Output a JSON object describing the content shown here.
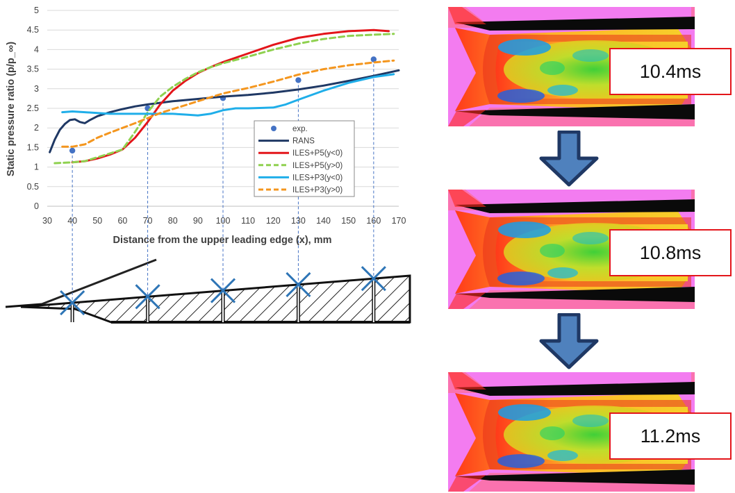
{
  "chart_data": {
    "type": "line",
    "xlabel": "Distance from the upper leading edge (x), mm",
    "ylabel": "Static pressure ratio (p/p_∞)",
    "xlim": [
      30,
      170
    ],
    "ylim": [
      0,
      5
    ],
    "xticks": [
      30,
      40,
      50,
      60,
      70,
      80,
      90,
      100,
      110,
      120,
      130,
      140,
      150,
      160,
      170
    ],
    "yticks": [
      0,
      0.5,
      1,
      1.5,
      2,
      2.5,
      3,
      3.5,
      4,
      4.5,
      5
    ],
    "ytick_labels": [
      "0",
      "0.5",
      "1",
      "1.5",
      "2",
      "2.5",
      "3",
      "3.5",
      "4",
      "4.5",
      "5"
    ],
    "grid": "horizontal",
    "legend_position": "center-right",
    "series": [
      {
        "name": "exp.",
        "kind": "markers",
        "color": "#4472c4",
        "x": [
          40,
          70,
          100,
          130,
          160
        ],
        "y": [
          1.42,
          2.5,
          2.76,
          3.22,
          3.75
        ]
      },
      {
        "name": "RANS",
        "kind": "line",
        "color": "#1f3864",
        "x": [
          31,
          33,
          35,
          37,
          39,
          41,
          43,
          45,
          47,
          50,
          55,
          60,
          65,
          70,
          80,
          90,
          100,
          110,
          120,
          130,
          140,
          150,
          160,
          170
        ],
        "y": [
          1.38,
          1.7,
          1.95,
          2.1,
          2.2,
          2.22,
          2.15,
          2.12,
          2.2,
          2.3,
          2.4,
          2.48,
          2.55,
          2.6,
          2.68,
          2.74,
          2.8,
          2.84,
          2.9,
          2.98,
          3.08,
          3.2,
          3.33,
          3.47
        ]
      },
      {
        "name": "ILES+P5(y<0)",
        "kind": "line",
        "color": "#e3151a",
        "x": [
          40,
          45,
          50,
          55,
          60,
          65,
          70,
          75,
          80,
          85,
          90,
          95,
          100,
          110,
          120,
          130,
          140,
          150,
          160,
          166
        ],
        "y": [
          1.12,
          1.15,
          1.22,
          1.32,
          1.45,
          1.75,
          2.15,
          2.6,
          2.95,
          3.2,
          3.4,
          3.55,
          3.68,
          3.9,
          4.12,
          4.3,
          4.4,
          4.47,
          4.5,
          4.47
        ]
      },
      {
        "name": "ILES+P5(y>0)",
        "kind": "dashed",
        "color": "#8fd14f",
        "x": [
          33,
          40,
          45,
          50,
          55,
          60,
          65,
          70,
          75,
          80,
          85,
          90,
          95,
          100,
          110,
          120,
          130,
          140,
          150,
          160,
          168
        ],
        "y": [
          1.1,
          1.12,
          1.15,
          1.25,
          1.35,
          1.45,
          1.9,
          2.4,
          2.8,
          3.05,
          3.25,
          3.42,
          3.55,
          3.65,
          3.82,
          4.0,
          4.15,
          4.27,
          4.35,
          4.38,
          4.4
        ]
      },
      {
        "name": "ILES+P3(y<0)",
        "kind": "line",
        "color": "#1faee9",
        "x": [
          36,
          40,
          45,
          50,
          55,
          60,
          70,
          80,
          85,
          90,
          95,
          100,
          105,
          110,
          120,
          125,
          130,
          140,
          150,
          160,
          168
        ],
        "y": [
          2.4,
          2.42,
          2.4,
          2.38,
          2.36,
          2.36,
          2.36,
          2.36,
          2.34,
          2.32,
          2.36,
          2.45,
          2.5,
          2.5,
          2.52,
          2.6,
          2.72,
          2.95,
          3.15,
          3.3,
          3.37
        ]
      },
      {
        "name": "ILES+P3(y>0)",
        "kind": "dashed",
        "color": "#f4961e",
        "x": [
          36,
          40,
          45,
          50,
          55,
          60,
          65,
          70,
          75,
          80,
          85,
          90,
          95,
          100,
          110,
          120,
          130,
          140,
          150,
          160,
          168
        ],
        "y": [
          1.52,
          1.52,
          1.58,
          1.75,
          1.88,
          2.0,
          2.12,
          2.25,
          2.38,
          2.48,
          2.58,
          2.68,
          2.78,
          2.88,
          3.02,
          3.18,
          3.36,
          3.5,
          3.6,
          3.67,
          3.72
        ]
      }
    ]
  },
  "snapshots": [
    {
      "time_label": "10.4ms"
    },
    {
      "time_label": "10.8ms"
    },
    {
      "time_label": "11.2ms"
    }
  ]
}
